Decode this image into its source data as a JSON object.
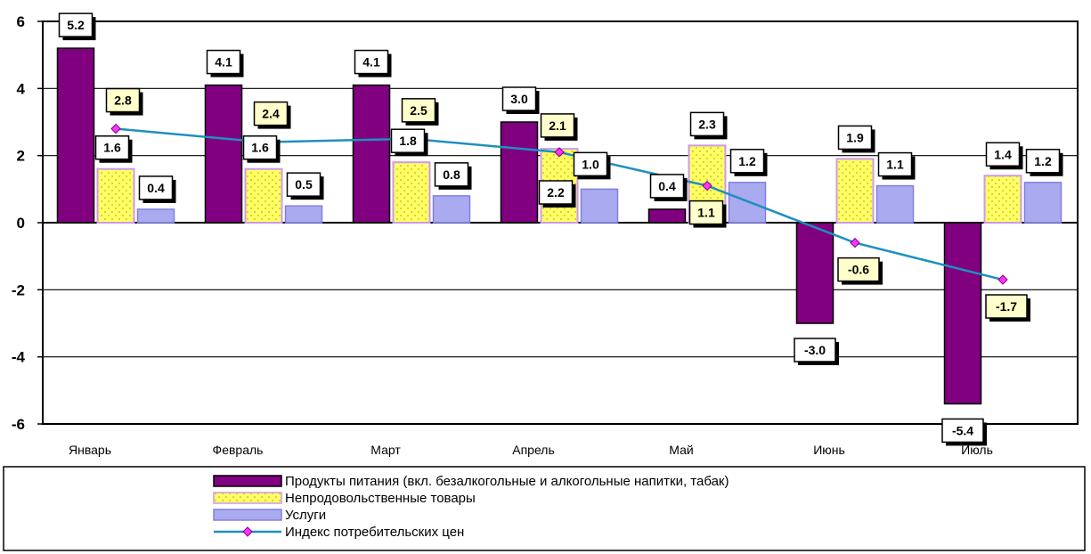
{
  "chart_data": {
    "type": "bar",
    "categories": [
      "Январь",
      "Февраль",
      "Март",
      "Апрель",
      "Май",
      "Июнь",
      "Июль"
    ],
    "series": [
      {
        "name": "Продукты питания (вкл. безалкогольные и алкогольные напитки, табак)",
        "kind": "bar",
        "values": [
          5.2,
          4.1,
          4.1,
          3.0,
          0.4,
          -3.0,
          -5.4
        ],
        "color": "#800080"
      },
      {
        "name": "Непродовольственные товары",
        "kind": "bar",
        "values": [
          1.6,
          1.6,
          1.8,
          2.2,
          2.3,
          1.9,
          1.4
        ],
        "color": "#ffff66"
      },
      {
        "name": "Услуги",
        "kind": "bar",
        "values": [
          0.4,
          0.5,
          0.8,
          1.0,
          1.2,
          1.1,
          1.2
        ],
        "color": "#aaaaf0"
      },
      {
        "name": "Индекс потребительских цен",
        "kind": "line",
        "values": [
          2.8,
          2.4,
          2.5,
          2.1,
          1.1,
          -0.6,
          -1.7
        ],
        "color": "#1f8fbf"
      }
    ],
    "yticks": [
      "6",
      "4",
      "2",
      "0",
      "-2",
      "-4",
      "-6"
    ],
    "ylim": [
      -6,
      6
    ],
    "grid": true,
    "legend_position": "bottom",
    "data_labels": [
      [
        "5.2",
        "4.1",
        "4.1",
        "3.0",
        "0.4",
        "-3.0",
        "-5.4"
      ],
      [
        "1.6",
        "1.6",
        "1.8",
        "2.2",
        "2.3",
        "1.9",
        "1.4"
      ],
      [
        "0.4",
        "0.5",
        "0.8",
        "1.0",
        "1.2",
        "1.1",
        "1.2"
      ],
      [
        "2.8",
        "2.4",
        "2.5",
        "2.1",
        "1.1",
        "-0.6",
        "-1.7"
      ]
    ]
  }
}
